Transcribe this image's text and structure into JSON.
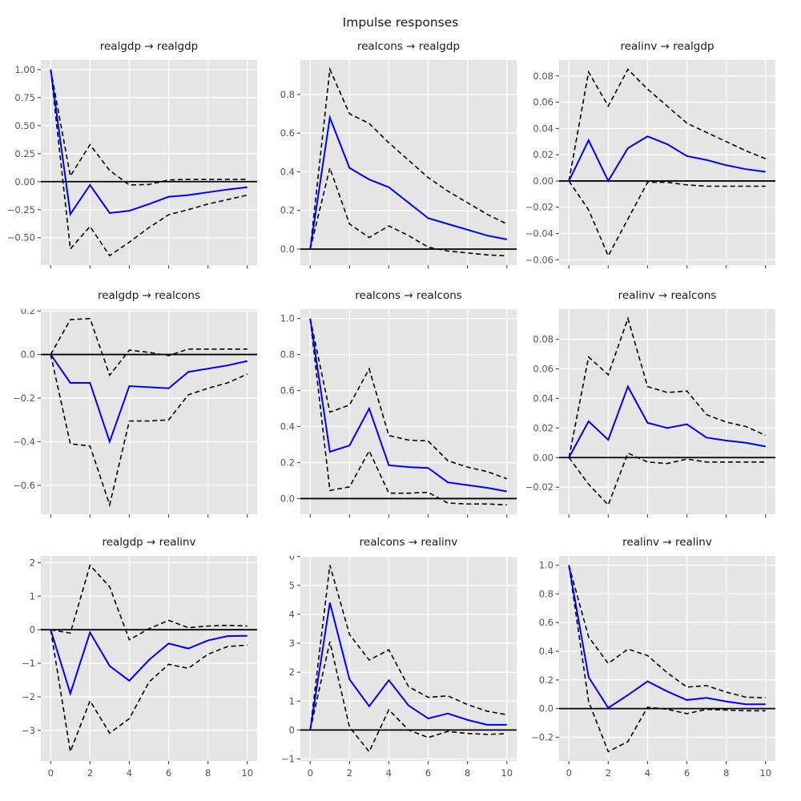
{
  "figure": {
    "title": "Impulse responses",
    "colors": {
      "figure_bg": "#ffffff",
      "plot_bg": "#e5e5e5",
      "grid": "#ffffff",
      "zero_line": "#000000",
      "irf_line": "#0000ff",
      "band_line": "#000000",
      "tick_text": "#555555",
      "title_text": "#1a1a1a"
    }
  },
  "chart_data": [
    {
      "type": "line",
      "title": "realgdp → realgdp",
      "x": [
        0,
        1,
        2,
        3,
        4,
        5,
        6,
        7,
        8,
        9,
        10
      ],
      "xlim": [
        -0.5,
        10.5
      ],
      "ylim": [
        -0.745,
        1.085
      ],
      "xticks": {
        "values": [
          0,
          2,
          4,
          6,
          8,
          10
        ]
      },
      "yticks": {
        "values": [
          1.0,
          0.75,
          0.5,
          0.25,
          0.0,
          -0.25,
          -0.5
        ],
        "labels": [
          "1.00",
          "0.75",
          "0.50",
          "0.25",
          "0.00",
          "−0.25",
          "−0.50"
        ]
      },
      "series": [
        {
          "name": "irf",
          "values": [
            1.0,
            -0.29,
            -0.03,
            -0.28,
            -0.26,
            -0.2,
            -0.135,
            -0.12,
            -0.095,
            -0.07,
            -0.05
          ]
        },
        {
          "name": "upper_band",
          "values": [
            1.0,
            0.05,
            0.33,
            0.1,
            -0.03,
            -0.025,
            0.015,
            0.02,
            0.02,
            0.02,
            0.02
          ]
        },
        {
          "name": "lower_band",
          "values": [
            1.0,
            -0.6,
            -0.4,
            -0.66,
            -0.54,
            -0.41,
            -0.295,
            -0.25,
            -0.2,
            -0.16,
            -0.12
          ]
        }
      ]
    },
    {
      "type": "line",
      "title": "realcons → realgdp",
      "x": [
        0,
        1,
        2,
        3,
        4,
        5,
        6,
        7,
        8,
        9,
        10
      ],
      "xlim": [
        -0.5,
        10.5
      ],
      "ylim": [
        -0.083,
        0.978
      ],
      "xticks": {
        "values": [
          0,
          2,
          4,
          6,
          8,
          10
        ]
      },
      "yticks": {
        "values": [
          0.8,
          0.6,
          0.4,
          0.2,
          0.0
        ],
        "labels": [
          "0.8",
          "0.6",
          "0.4",
          "0.2",
          "0.0"
        ]
      },
      "series": [
        {
          "name": "irf",
          "values": [
            0,
            0.68,
            0.42,
            0.36,
            0.32,
            0.24,
            0.16,
            0.13,
            0.1,
            0.07,
            0.05
          ]
        },
        {
          "name": "upper_band",
          "values": [
            0,
            0.93,
            0.7,
            0.65,
            0.55,
            0.46,
            0.37,
            0.3,
            0.24,
            0.18,
            0.13
          ]
        },
        {
          "name": "lower_band",
          "values": [
            0,
            0.42,
            0.13,
            0.06,
            0.12,
            0.07,
            0.01,
            -0.01,
            -0.02,
            -0.03,
            -0.035
          ]
        }
      ]
    },
    {
      "type": "line",
      "title": "realinv → realgdp",
      "x": [
        0,
        1,
        2,
        3,
        4,
        5,
        6,
        7,
        8,
        9,
        10
      ],
      "xlim": [
        -0.5,
        10.5
      ],
      "ylim": [
        -0.0641,
        0.0921
      ],
      "xticks": {
        "values": [
          0,
          2,
          4,
          6,
          8,
          10
        ]
      },
      "yticks": {
        "values": [
          0.08,
          0.06,
          0.04,
          0.02,
          0.0,
          -0.02,
          -0.04,
          -0.06
        ],
        "labels": [
          "0.08",
          "0.06",
          "0.04",
          "0.02",
          "0.00",
          "−0.02",
          "−0.04",
          "−0.06"
        ]
      },
      "series": [
        {
          "name": "irf",
          "values": [
            0,
            0.031,
            0.0,
            0.025,
            0.034,
            0.028,
            0.019,
            0.016,
            0.012,
            0.009,
            0.007
          ]
        },
        {
          "name": "upper_band",
          "values": [
            0,
            0.083,
            0.057,
            0.085,
            0.07,
            0.057,
            0.044,
            0.037,
            0.03,
            0.023,
            0.017
          ]
        },
        {
          "name": "lower_band",
          "values": [
            0,
            -0.022,
            -0.057,
            -0.029,
            -0.001,
            -0.001,
            -0.003,
            -0.004,
            -0.004,
            -0.004,
            -0.004
          ]
        }
      ]
    },
    {
      "type": "line",
      "title": "realgdp → realcons",
      "x": [
        0,
        1,
        2,
        3,
        4,
        5,
        6,
        7,
        8,
        9,
        10
      ],
      "xlim": [
        -0.5,
        10.5
      ],
      "ylim": [
        -0.733,
        0.208
      ],
      "xticks": {
        "values": [
          0,
          2,
          4,
          6,
          8,
          10
        ]
      },
      "yticks": {
        "values": [
          0.2,
          0.0,
          -0.2,
          -0.4,
          -0.6
        ],
        "labels": [
          "0.2",
          "0.0",
          "−0.2",
          "−0.4",
          "−0.6"
        ]
      },
      "series": [
        {
          "name": "irf",
          "values": [
            0,
            -0.13,
            -0.13,
            -0.4,
            -0.145,
            -0.15,
            -0.155,
            -0.08,
            -0.065,
            -0.05,
            -0.03
          ]
        },
        {
          "name": "upper_band",
          "values": [
            0,
            0.16,
            0.165,
            -0.095,
            0.02,
            0.01,
            -0.005,
            0.025,
            0.025,
            0.025,
            0.025
          ]
        },
        {
          "name": "lower_band",
          "values": [
            0,
            -0.41,
            -0.42,
            -0.69,
            -0.305,
            -0.305,
            -0.3,
            -0.185,
            -0.155,
            -0.13,
            -0.09
          ]
        }
      ]
    },
    {
      "type": "line",
      "title": "realcons → realcons",
      "x": [
        0,
        1,
        2,
        3,
        4,
        5,
        6,
        7,
        8,
        9,
        10
      ],
      "xlim": [
        -0.5,
        10.5
      ],
      "ylim": [
        -0.087,
        1.052
      ],
      "xticks": {
        "values": [
          0,
          2,
          4,
          6,
          8,
          10
        ]
      },
      "yticks": {
        "values": [
          1.0,
          0.8,
          0.6,
          0.4,
          0.2,
          0.0
        ],
        "labels": [
          "1.0",
          "0.8",
          "0.6",
          "0.4",
          "0.2",
          "0.0"
        ]
      },
      "series": [
        {
          "name": "irf",
          "values": [
            1.0,
            0.26,
            0.295,
            0.5,
            0.185,
            0.175,
            0.17,
            0.09,
            0.075,
            0.06,
            0.04
          ]
        },
        {
          "name": "upper_band",
          "values": [
            1.0,
            0.48,
            0.52,
            0.72,
            0.35,
            0.325,
            0.32,
            0.21,
            0.175,
            0.15,
            0.11
          ]
        },
        {
          "name": "lower_band",
          "values": [
            1.0,
            0.045,
            0.065,
            0.265,
            0.03,
            0.03,
            0.035,
            -0.025,
            -0.03,
            -0.03,
            -0.035
          ]
        }
      ]
    },
    {
      "type": "line",
      "title": "realinv → realcons",
      "x": [
        0,
        1,
        2,
        3,
        4,
        5,
        6,
        7,
        8,
        9,
        10
      ],
      "xlim": [
        -0.5,
        10.5
      ],
      "ylim": [
        -0.0383,
        0.1003
      ],
      "xticks": {
        "values": [
          0,
          2,
          4,
          6,
          8,
          10
        ]
      },
      "yticks": {
        "values": [
          0.08,
          0.06,
          0.04,
          0.02,
          0.0,
          -0.02
        ],
        "labels": [
          "0.08",
          "0.06",
          "0.04",
          "0.02",
          "0.00",
          "−0.02"
        ]
      },
      "series": [
        {
          "name": "irf",
          "values": [
            0,
            0.0245,
            0.012,
            0.048,
            0.0235,
            0.02,
            0.0225,
            0.0135,
            0.0115,
            0.01,
            0.0075
          ]
        },
        {
          "name": "upper_band",
          "values": [
            0,
            0.068,
            0.056,
            0.094,
            0.048,
            0.044,
            0.045,
            0.029,
            0.024,
            0.021,
            0.015
          ]
        },
        {
          "name": "lower_band",
          "values": [
            0,
            -0.018,
            -0.032,
            0.003,
            -0.003,
            -0.004,
            -0.001,
            -0.003,
            -0.003,
            -0.003,
            -0.003
          ]
        }
      ]
    },
    {
      "type": "line",
      "title": "realgdp → realinv",
      "x": [
        0,
        1,
        2,
        3,
        4,
        5,
        6,
        7,
        8,
        9,
        10
      ],
      "xlim": [
        -0.5,
        10.5
      ],
      "ylim": [
        -3.91,
        2.2
      ],
      "xticks": {
        "values": [
          0,
          2,
          4,
          6,
          8,
          10
        ],
        "labels": [
          "0",
          "2",
          "4",
          "6",
          "8",
          "10"
        ]
      },
      "yticks": {
        "values": [
          2,
          1,
          0,
          -1,
          -2,
          -3
        ],
        "labels": [
          "2",
          "1",
          "0",
          "−1",
          "−2",
          "−3"
        ]
      },
      "series": [
        {
          "name": "irf",
          "values": [
            0,
            -1.9,
            -0.08,
            -1.08,
            -1.52,
            -0.9,
            -0.41,
            -0.56,
            -0.32,
            -0.19,
            -0.18
          ]
        },
        {
          "name": "upper_band",
          "values": [
            0,
            -0.1,
            1.92,
            1.28,
            -0.3,
            0.03,
            0.28,
            0.06,
            0.11,
            0.13,
            0.11
          ]
        },
        {
          "name": "lower_band",
          "values": [
            0,
            -3.63,
            -2.12,
            -3.08,
            -2.65,
            -1.56,
            -1.03,
            -1.15,
            -0.73,
            -0.5,
            -0.46
          ]
        }
      ]
    },
    {
      "type": "line",
      "title": "realcons → realinv",
      "x": [
        0,
        1,
        2,
        3,
        4,
        5,
        6,
        7,
        8,
        9,
        10
      ],
      "xlim": [
        -0.5,
        10.5
      ],
      "ylim": [
        -1.07,
        6.02
      ],
      "xticks": {
        "values": [
          0,
          2,
          4,
          6,
          8,
          10
        ],
        "labels": [
          "0",
          "2",
          "4",
          "6",
          "8",
          "10"
        ]
      },
      "yticks": {
        "values": [
          6,
          5,
          4,
          3,
          2,
          1,
          0,
          -1
        ],
        "labels": [
          "6",
          "5",
          "4",
          "3",
          "2",
          "1",
          "0",
          "−1"
        ]
      },
      "series": [
        {
          "name": "irf",
          "values": [
            0,
            4.4,
            1.75,
            0.82,
            1.72,
            0.85,
            0.4,
            0.57,
            0.35,
            0.18,
            0.18
          ]
        },
        {
          "name": "upper_band",
          "values": [
            0,
            5.7,
            3.3,
            2.42,
            2.77,
            1.5,
            1.13,
            1.18,
            0.88,
            0.65,
            0.53
          ]
        },
        {
          "name": "lower_band",
          "values": [
            0,
            3.05,
            0.1,
            -0.75,
            0.7,
            0.0,
            -0.26,
            -0.05,
            -0.12,
            -0.15,
            -0.13
          ]
        }
      ]
    },
    {
      "type": "line",
      "title": "realinv → realinv",
      "x": [
        0,
        1,
        2,
        3,
        4,
        5,
        6,
        7,
        8,
        9,
        10
      ],
      "xlim": [
        -0.5,
        10.5
      ],
      "ylim": [
        -0.365,
        1.065
      ],
      "xticks": {
        "values": [
          0,
          2,
          4,
          6,
          8,
          10
        ],
        "labels": [
          "0",
          "2",
          "4",
          "6",
          "8",
          "10"
        ]
      },
      "yticks": {
        "values": [
          1.0,
          0.8,
          0.6,
          0.4,
          0.2,
          0.0,
          -0.2
        ],
        "labels": [
          "1.0",
          "0.8",
          "0.6",
          "0.4",
          "0.2",
          "0.0",
          "−0.2"
        ]
      },
      "series": [
        {
          "name": "irf",
          "values": [
            1.0,
            0.22,
            0.005,
            0.095,
            0.19,
            0.12,
            0.06,
            0.075,
            0.05,
            0.03,
            0.03
          ]
        },
        {
          "name": "upper_band",
          "values": [
            1.0,
            0.5,
            0.315,
            0.415,
            0.37,
            0.25,
            0.15,
            0.16,
            0.115,
            0.08,
            0.075
          ]
        },
        {
          "name": "lower_band",
          "values": [
            1.0,
            0.05,
            -0.3,
            -0.23,
            0.01,
            -0.005,
            -0.035,
            -0.005,
            -0.01,
            -0.015,
            -0.015
          ]
        }
      ]
    }
  ]
}
